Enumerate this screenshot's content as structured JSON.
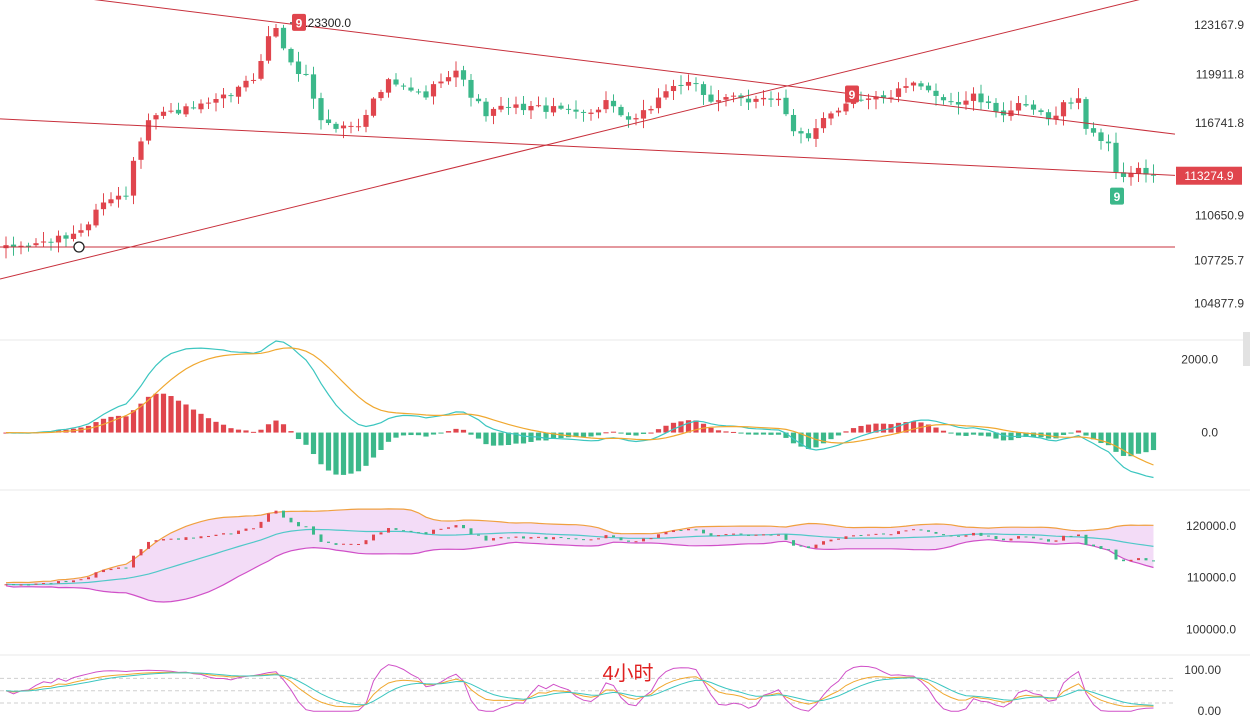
{
  "timeframe_label": "4小时",
  "colors": {
    "up": "#e0454d",
    "down": "#3bb88a",
    "trendline": "#c8303c",
    "dif": "#3cc6c0",
    "dea": "#f0a830",
    "boll_upper": "#f0a040",
    "boll_mid": "#50c8c8",
    "boll_lower": "#d050c8",
    "boll_fill": "#f3dcf7",
    "kdj_k": "#f0a830",
    "kdj_d": "#3cc6c0",
    "kdj_j": "#d050c8",
    "price_tag_bg": "#e0454d"
  },
  "chart_data": [
    {
      "type": "candlestick",
      "title": "",
      "y_ticks": [
        "123167.9",
        "119911.8",
        "116741.8",
        "110650.9",
        "107725.7",
        "104877.9"
      ],
      "ylim": [
        102500,
        124800
      ],
      "current_price": "113274.9",
      "peak_annotation": "123300.0",
      "markers": [
        {
          "text": "9",
          "kind": "sell",
          "near": 123300
        },
        {
          "text": "9",
          "kind": "sell",
          "near": 118600
        },
        {
          "text": "9",
          "kind": "buy",
          "near": 111900
        }
      ],
      "trendlines": [
        {
          "name": "upper-descending",
          "from_price": 125600,
          "to_price": 116000
        },
        {
          "name": "lower-descending",
          "from_price": 117000,
          "to_price": 113300
        },
        {
          "name": "ascending-support",
          "from_price": 106500,
          "to_price": 125400
        },
        {
          "name": "horizontal-support",
          "from_price": 108600,
          "to_price": 108600
        }
      ],
      "anchors": [
        [
          0,
          108500
        ],
        [
          4,
          108800
        ],
        [
          8,
          109200
        ],
        [
          11,
          110100
        ],
        [
          13,
          111700
        ],
        [
          16,
          112000
        ],
        [
          17,
          114400
        ],
        [
          19,
          117100
        ],
        [
          21,
          117400
        ],
        [
          24,
          117600
        ],
        [
          27,
          117900
        ],
        [
          30,
          118600
        ],
        [
          33,
          119700
        ],
        [
          35,
          122300
        ],
        [
          36,
          123000
        ],
        [
          38,
          120500
        ],
        [
          40,
          119800
        ],
        [
          42,
          117000
        ],
        [
          44,
          116400
        ],
        [
          47,
          116700
        ],
        [
          49,
          118200
        ],
        [
          51,
          119400
        ],
        [
          54,
          118800
        ],
        [
          56,
          118500
        ],
        [
          58,
          119700
        ],
        [
          60,
          120200
        ],
        [
          62,
          118600
        ],
        [
          64,
          117300
        ],
        [
          66,
          117700
        ],
        [
          70,
          117800
        ],
        [
          73,
          117600
        ],
        [
          76,
          117700
        ],
        [
          78,
          117300
        ],
        [
          80,
          118200
        ],
        [
          82,
          117000
        ],
        [
          84,
          116900
        ],
        [
          86,
          117800
        ],
        [
          88,
          118900
        ],
        [
          90,
          119300
        ],
        [
          92,
          119100
        ],
        [
          94,
          118200
        ],
        [
          96,
          118500
        ],
        [
          99,
          118000
        ],
        [
          101,
          118500
        ],
        [
          103,
          118400
        ],
        [
          105,
          116100
        ],
        [
          107,
          115600
        ],
        [
          109,
          117200
        ],
        [
          111,
          117700
        ],
        [
          113,
          118300
        ],
        [
          115,
          118500
        ],
        [
          117,
          118300
        ],
        [
          119,
          118800
        ],
        [
          121,
          119200
        ],
        [
          123,
          118800
        ],
        [
          125,
          118400
        ],
        [
          127,
          118000
        ],
        [
          129,
          118500
        ],
        [
          131,
          117800
        ],
        [
          133,
          117400
        ],
        [
          135,
          117800
        ],
        [
          137,
          117600
        ],
        [
          139,
          116900
        ],
        [
          141,
          118000
        ],
        [
          143,
          118200
        ],
        [
          144,
          116500
        ],
        [
          146,
          115700
        ],
        [
          147,
          115200
        ],
        [
          148,
          113600
        ],
        [
          149,
          113300
        ],
        [
          151,
          113600
        ],
        [
          153,
          113274.9
        ]
      ]
    },
    {
      "type": "bar",
      "name": "macd",
      "y_ticks": [
        "2000.0",
        "0.0"
      ],
      "ylim": [
        -1300,
        2400
      ]
    },
    {
      "type": "line",
      "name": "bollinger",
      "y_ticks": [
        "120000.0",
        "110000.0",
        "100000.0"
      ],
      "ylim": [
        96000,
        126000
      ]
    },
    {
      "type": "line",
      "name": "kdj",
      "y_ticks": [
        "100.00",
        "0.00"
      ],
      "ylim": [
        -2,
        125
      ]
    }
  ]
}
